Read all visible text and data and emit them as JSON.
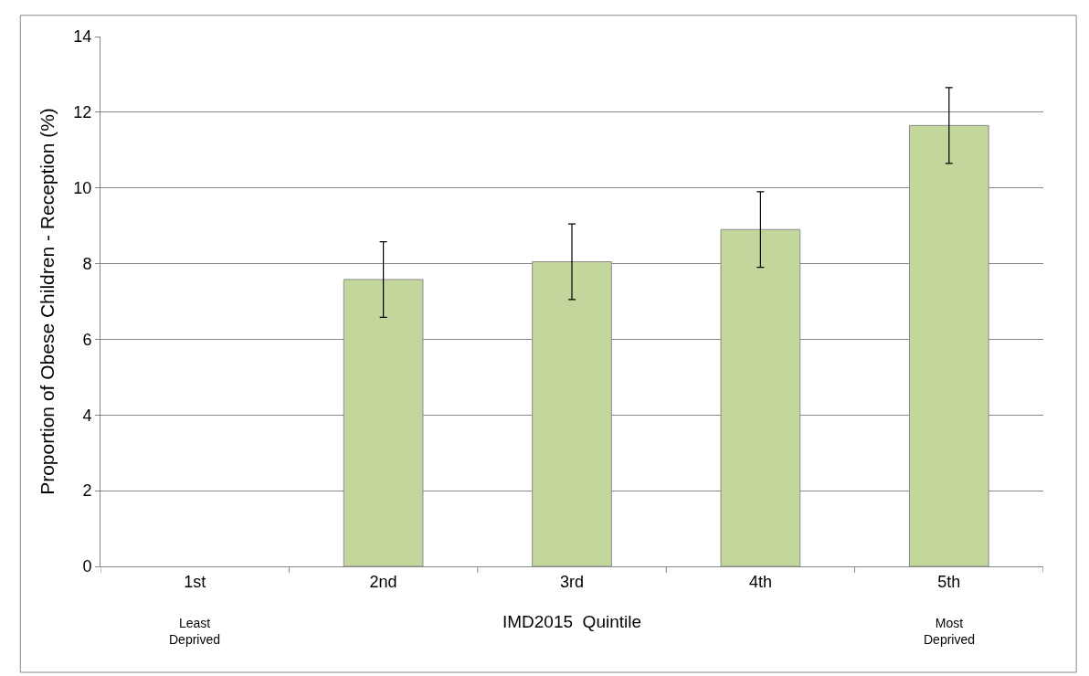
{
  "chart_data": {
    "type": "bar",
    "xlabel": "IMD2015  Quintile",
    "ylabel": "Proportion of Obese Children - Reception (%)",
    "categories": [
      "1st",
      "2nd",
      "3rd",
      "4th",
      "5th"
    ],
    "values": [
      null,
      7.58,
      8.05,
      8.9,
      11.65
    ],
    "errors": [
      null,
      1.0,
      1.0,
      1.0,
      1.0
    ],
    "color": "#c3d69b",
    "ylim": [
      0,
      14
    ],
    "yticks": [
      0,
      2,
      4,
      6,
      8,
      10,
      12,
      14
    ],
    "grid": "y",
    "annotations": [
      "Least\nDeprived",
      "Most\nDeprived"
    ]
  }
}
